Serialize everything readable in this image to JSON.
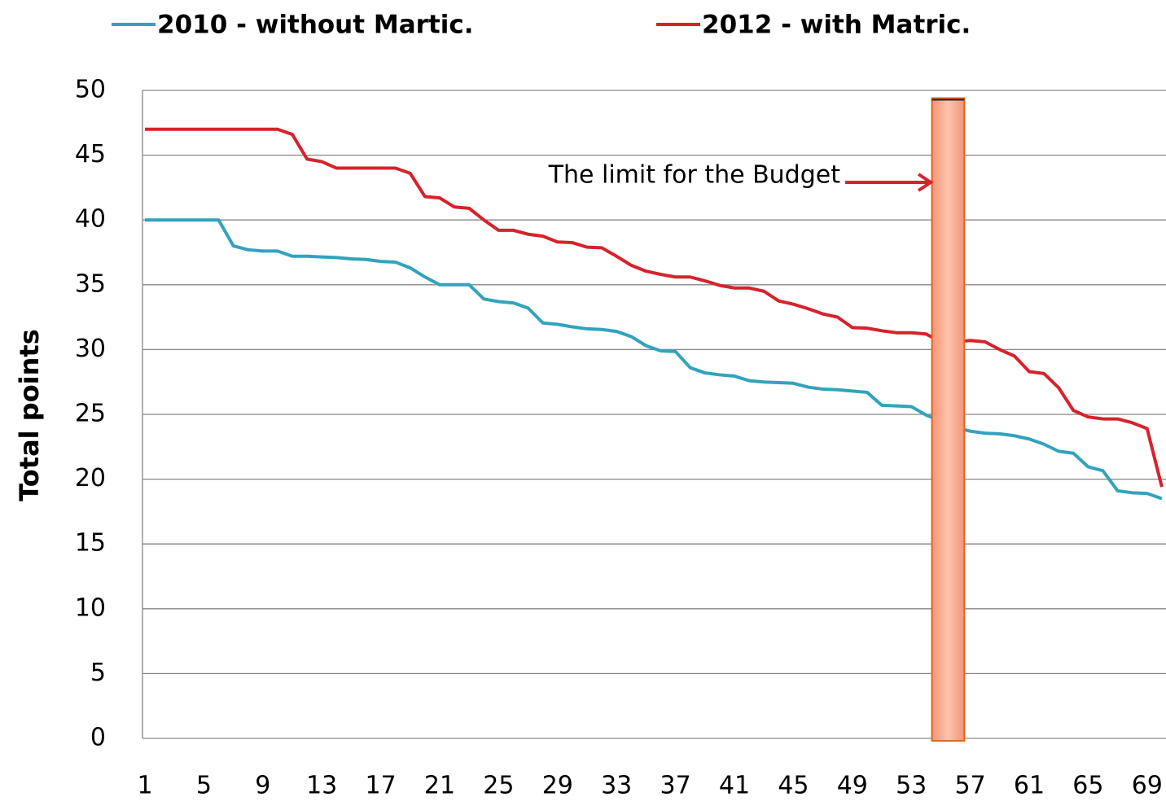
{
  "chart_data": {
    "type": "line",
    "ylabel": "Total points",
    "categories": [
      1,
      null,
      null,
      null,
      5,
      null,
      null,
      null,
      9,
      null,
      null,
      null,
      13,
      null,
      null,
      null,
      17,
      null,
      null,
      null,
      21,
      null,
      null,
      null,
      25,
      null,
      null,
      null,
      29,
      null,
      null,
      null,
      33,
      null,
      null,
      null,
      37,
      null,
      null,
      null,
      41,
      null,
      null,
      null,
      45,
      null,
      null,
      null,
      49,
      null,
      null,
      null,
      53,
      null,
      null,
      null,
      57,
      null,
      null,
      null,
      61,
      null,
      null,
      null,
      65,
      null,
      null,
      null,
      69,
      null
    ],
    "series": [
      {
        "name": "2010 - without Martic.",
        "color": "#31a3bd",
        "values": [
          40,
          40,
          40,
          40,
          40,
          40,
          38,
          37.7,
          37.6,
          37.6,
          37.2,
          37.2,
          37.15,
          37.1,
          37,
          36.95,
          36.8,
          36.75,
          36.3,
          35.6,
          35,
          35,
          35,
          33.9,
          33.7,
          33.6,
          33.2,
          32.05,
          31.95,
          31.75,
          31.6,
          31.55,
          31.4,
          31,
          30.3,
          29.9,
          29.85,
          28.6,
          28.2,
          28.05,
          27.95,
          27.6,
          27.5,
          27.45,
          27.4,
          27.1,
          26.95,
          26.9,
          26.8,
          26.7,
          25.7,
          25.65,
          25.6,
          24.95,
          24.5,
          24,
          23.7,
          23.55,
          23.5,
          23.35,
          23.1,
          22.7,
          22.15,
          22,
          20.95,
          20.65,
          19.1,
          18.95,
          18.9,
          18.5
        ]
      },
      {
        "name": "2012 - with Matric.",
        "color": "#d7222b",
        "values": [
          47,
          47,
          47,
          47,
          47,
          47,
          47,
          47,
          47,
          47,
          46.6,
          44.7,
          44.5,
          44,
          44,
          44,
          44,
          44,
          43.6,
          41.8,
          41.7,
          41,
          40.9,
          40,
          39.2,
          39.2,
          38.9,
          38.75,
          38.3,
          38.25,
          37.9,
          37.85,
          37.2,
          36.5,
          36.05,
          35.8,
          35.6,
          35.6,
          35.3,
          34.95,
          34.75,
          34.75,
          34.5,
          33.75,
          33.5,
          33.15,
          32.75,
          32.5,
          31.7,
          31.65,
          31.45,
          31.3,
          31.3,
          31.2,
          30.6,
          30.6,
          30.7,
          30.6,
          30,
          29.5,
          28.3,
          28.15,
          27.05,
          25.3,
          24.8,
          24.65,
          24.65,
          24.35,
          23.9,
          19.4
        ]
      }
    ],
    "ylim": [
      0,
      50
    ],
    "yticks": [
      0,
      5,
      10,
      15,
      20,
      25,
      30,
      35,
      40,
      45,
      50
    ],
    "grid": true,
    "legend": "top",
    "annotation": {
      "text": "The limit for the Budget"
    },
    "band": {
      "from": 53.4,
      "to": 55.6,
      "top": 49.4,
      "color": "#f59b7a",
      "edge_color": "#e0661f"
    }
  }
}
